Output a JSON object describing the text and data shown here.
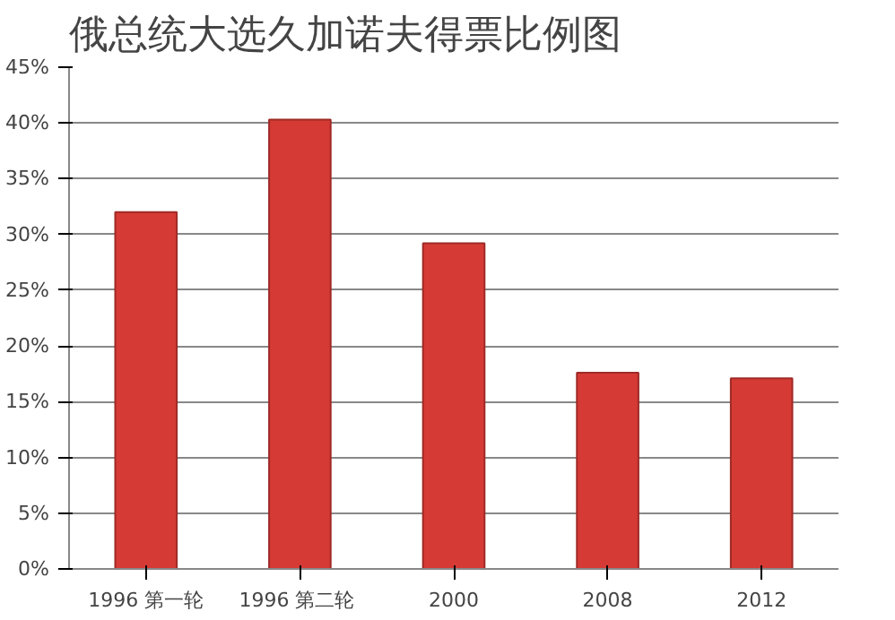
{
  "chart_data": {
    "type": "bar",
    "title": "俄总统大选久加诺夫得票比例图",
    "categories": [
      "1996 第一轮",
      "1996  第二轮",
      "2000",
      "2008",
      "2012"
    ],
    "values": [
      32,
      40.3,
      29.2,
      17.6,
      17.1
    ],
    "color": "#d63a35",
    "ylim": [
      0,
      45
    ],
    "yticks": [
      {
        "value": 0,
        "label": "0%"
      },
      {
        "value": 5,
        "label": "5%"
      },
      {
        "value": 10,
        "label": "10%"
      },
      {
        "value": 15,
        "label": "15%"
      },
      {
        "value": 20,
        "label": "20%"
      },
      {
        "value": 25,
        "label": "25%"
      },
      {
        "value": 30,
        "label": "30%"
      },
      {
        "value": 35,
        "label": "35%"
      },
      {
        "value": 40,
        "label": "40%"
      },
      {
        "value": 45,
        "label": "45%"
      }
    ],
    "grid": "y"
  }
}
